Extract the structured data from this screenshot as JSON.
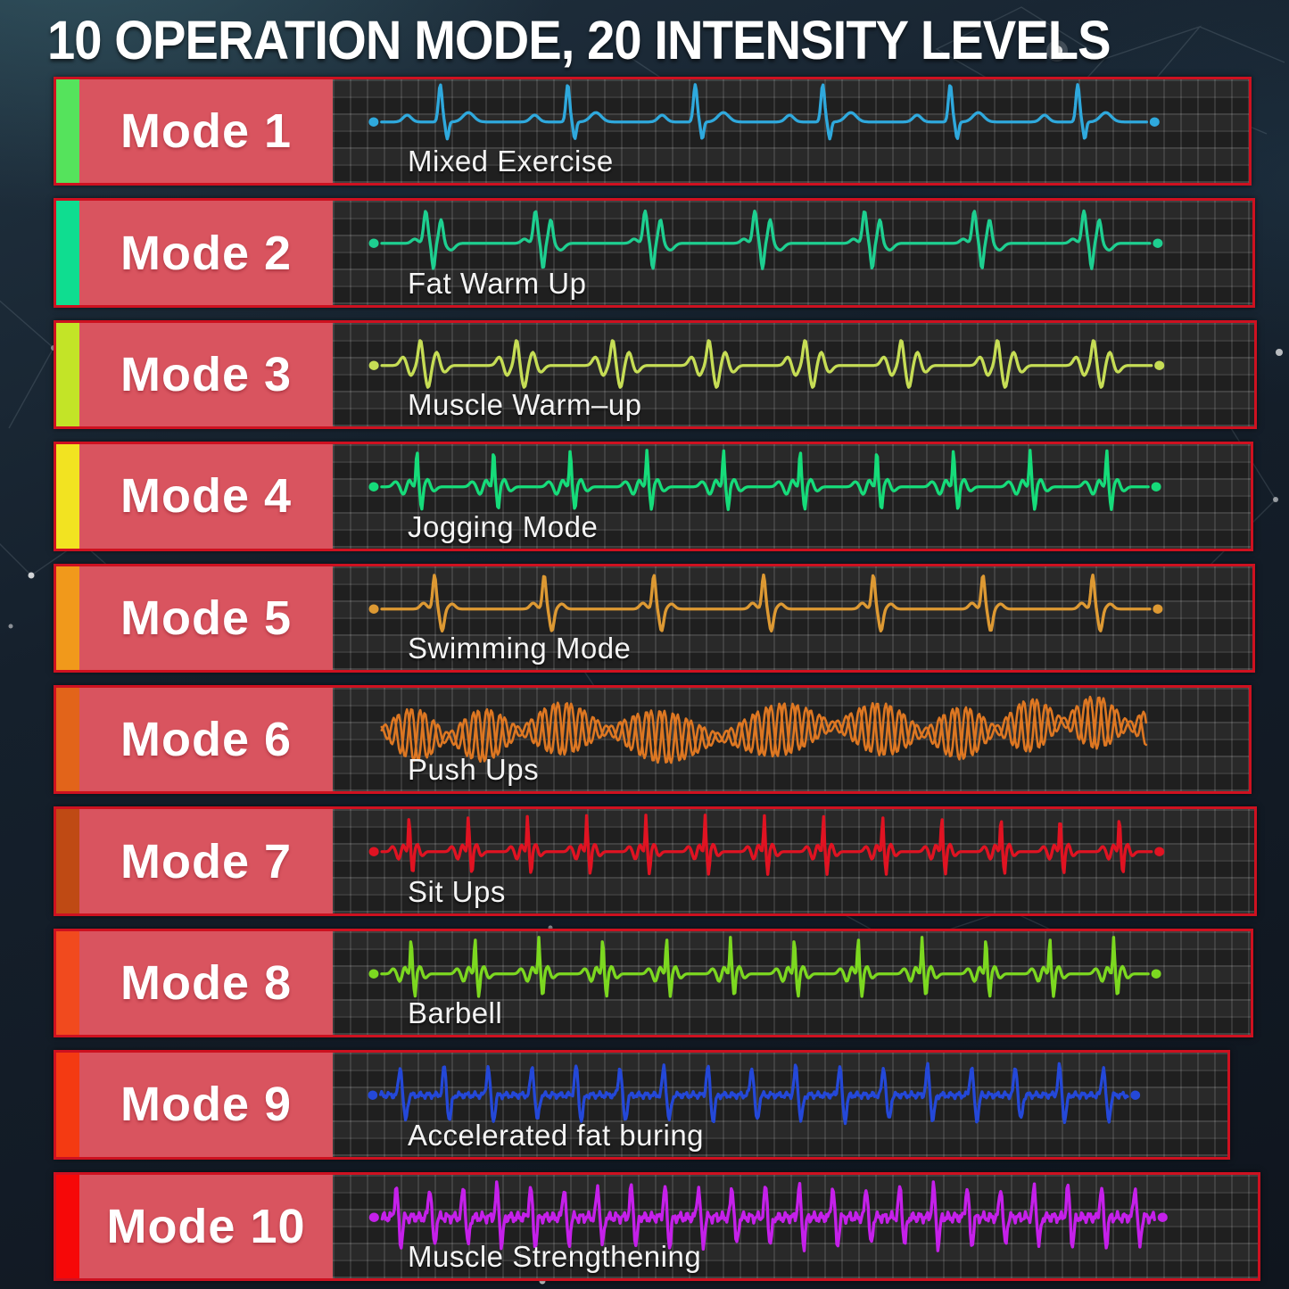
{
  "title": "10 OPERATION MODE, 20 INTENSITY LEVELS",
  "colors": {
    "row_border": "#ce1120",
    "mode_box_fill": "#d9545f",
    "panel_background": "#1f1f1f",
    "title_color": "#ffffff"
  },
  "modes": [
    {
      "label": "Mode 1",
      "description": "Mixed Exercise",
      "stripe_color": "#55e35c",
      "wave_color": "#2fa9dd",
      "wave_pattern": "ecg",
      "beats": 6
    },
    {
      "label": "Mode 2",
      "description": "Fat Warm Up",
      "stripe_color": "#0fdd90",
      "wave_color": "#1ecf90",
      "wave_pattern": "double-peak",
      "beats": 7
    },
    {
      "label": "Mode 3",
      "description": "Muscle Warm–up",
      "stripe_color": "#c3e427",
      "wave_color": "#c6dd55",
      "wave_pattern": "wiggle",
      "beats": 8
    },
    {
      "label": "Mode 4",
      "description": "Jogging Mode",
      "stripe_color": "#f2e321",
      "wave_color": "#16dc7a",
      "wave_pattern": "spike",
      "beats": 10
    },
    {
      "label": "Mode 5",
      "description": "Swimming Mode",
      "stripe_color": "#f1991b",
      "wave_color": "#dd9933",
      "wave_pattern": "sparse-spike",
      "beats": 7
    },
    {
      "label": "Mode 6",
      "description": "Push Ups",
      "stripe_color": "#e2641a",
      "wave_color": "#dd7722",
      "wave_pattern": "spindle",
      "beats": 9
    },
    {
      "label": "Mode 7",
      "description": "Sit Ups",
      "stripe_color": "#bf4a14",
      "wave_color": "#e01322",
      "wave_pattern": "spike",
      "beats": 13
    },
    {
      "label": "Mode 8",
      "description": "Barbell",
      "stripe_color": "#f14a1e",
      "wave_color": "#7cd820",
      "wave_pattern": "spike",
      "beats": 12
    },
    {
      "label": "Mode 9",
      "description": "Accelerated fat buring",
      "stripe_color": "#f43a12",
      "wave_color": "#2448d8",
      "wave_pattern": "dense-spike",
      "beats": 17
    },
    {
      "label": "Mode 10",
      "description": "Muscle Strengthening",
      "stripe_color": "#f60808",
      "wave_color": "#c520ea",
      "wave_pattern": "very-dense-spike",
      "beats": 23
    }
  ]
}
